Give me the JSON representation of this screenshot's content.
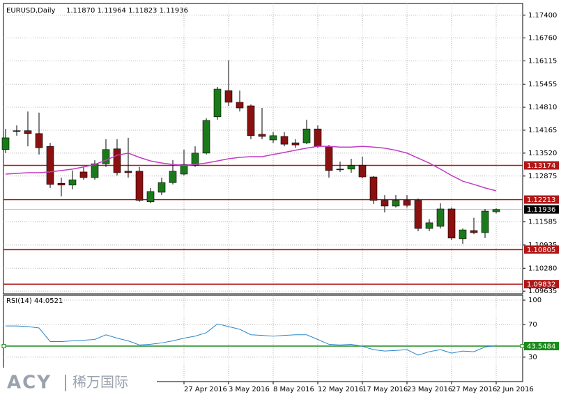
{
  "chart_data": [
    {
      "type": "candlestick",
      "title": "EURUSD,Daily",
      "header_prices": "1.11870 1.11964 1.11823 1.11936",
      "categories": [
        null,
        null,
        null,
        null,
        null,
        null,
        null,
        null,
        null,
        null,
        null,
        null,
        null,
        null,
        null,
        null,
        "27 Apr 2016",
        null,
        null,
        null,
        "3 May 2016",
        null,
        null,
        null,
        "8 May 2016",
        null,
        null,
        null,
        "12 May 2016",
        null,
        null,
        null,
        "17 May 2016",
        null,
        null,
        null,
        "23 May 2016",
        null,
        null,
        null,
        "27 May 2016",
        null,
        null,
        null,
        "2 Jun 2016"
      ],
      "open": [
        1.1362,
        1.1415,
        1.1415,
        1.1407,
        1.1371,
        1.1267,
        1.1262,
        1.1299,
        1.1283,
        1.1322,
        1.1364,
        1.1301,
        1.1301,
        1.1215,
        1.1242,
        1.1269,
        1.1293,
        1.1318,
        1.1352,
        1.1454,
        1.1528,
        1.1495,
        1.1485,
        1.1405,
        1.1389,
        1.1399,
        1.1381,
        1.1381,
        1.142,
        1.1371,
        1.1307,
        1.1307,
        1.1318,
        1.1285,
        1.1219,
        1.1203,
        1.1219,
        1.1219,
        1.114,
        1.1146,
        1.1195,
        1.1111,
        1.1134,
        1.1128,
        1.1187
      ],
      "high": [
        1.142,
        1.143,
        1.1469,
        1.1466,
        1.1381,
        1.1283,
        1.1303,
        1.1313,
        1.1332,
        1.1391,
        1.1391,
        1.1395,
        1.1313,
        1.1254,
        1.1283,
        1.1332,
        1.1362,
        1.1371,
        1.145,
        1.1538,
        1.1613,
        1.1528,
        1.1489,
        1.1479,
        1.1411,
        1.1411,
        1.1391,
        1.1446,
        1.143,
        1.1375,
        1.1328,
        1.1336,
        1.1342,
        1.1287,
        1.1234,
        1.1234,
        1.1234,
        1.1224,
        1.1166,
        1.1211,
        1.1199,
        1.114,
        1.117,
        1.1195,
        1.11964
      ],
      "low": [
        1.1352,
        1.1401,
        1.1371,
        1.1348,
        1.1254,
        1.123,
        1.125,
        1.1277,
        1.1277,
        1.1313,
        1.1289,
        1.1283,
        1.1215,
        1.1211,
        1.1234,
        1.1264,
        1.1289,
        1.1313,
        1.1348,
        1.1446,
        1.1485,
        1.1469,
        1.1391,
        1.1391,
        1.1381,
        1.1371,
        1.1367,
        1.1377,
        1.1367,
        1.1283,
        1.1299,
        1.1297,
        1.1281,
        1.1209,
        1.1185,
        1.1199,
        1.1199,
        1.1132,
        1.1132,
        1.114,
        1.1107,
        1.1097,
        1.1124,
        1.1113,
        1.11823
      ],
      "close": [
        1.1395,
        1.1413,
        1.1407,
        1.1367,
        1.1264,
        1.1262,
        1.1277,
        1.1283,
        1.1322,
        1.1362,
        1.1297,
        1.1297,
        1.1219,
        1.1244,
        1.1269,
        1.1301,
        1.132,
        1.1352,
        1.1444,
        1.1532,
        1.1495,
        1.1479,
        1.1401,
        1.1399,
        1.1401,
        1.1377,
        1.1375,
        1.142,
        1.1371,
        1.1303,
        1.1305,
        1.1317,
        1.1285,
        1.1219,
        1.1203,
        1.1219,
        1.1205,
        1.114,
        1.1156,
        1.1195,
        1.1113,
        1.1136,
        1.1128,
        1.1189,
        1.11936
      ],
      "up_color": "#1a7a1a",
      "down_color": "#8b1010",
      "ylim": [
        1.0956,
        1.1773
      ],
      "yticks": [
        {
          "value": 1.174,
          "label": "1.17400"
        },
        {
          "value": 1.1676,
          "label": "1.16760"
        },
        {
          "value": 1.16115,
          "label": "1.16115"
        },
        {
          "value": 1.15455,
          "label": "1.15455"
        },
        {
          "value": 1.1481,
          "label": "1.14810"
        },
        {
          "value": 1.14165,
          "label": "1.14165"
        },
        {
          "value": 1.1352,
          "label": "1.13520"
        },
        {
          "value": 1.12875,
          "label": "1.12875"
        },
        {
          "value": 1.11585,
          "label": "1.11585"
        },
        {
          "value": 1.10935,
          "label": "1.10935"
        },
        {
          "value": 1.1028,
          "label": "1.10280"
        },
        {
          "value": 1.09635,
          "label": "1.09635"
        }
      ],
      "grid": true,
      "moving_average": {
        "color": "#c23cc2",
        "values": [
          1.1293,
          1.1295,
          1.1297,
          1.1297,
          1.1299,
          1.1303,
          1.1307,
          1.1313,
          1.132,
          1.1332,
          1.1346,
          1.1352,
          1.134,
          1.133,
          1.1324,
          1.132,
          1.1318,
          1.132,
          1.1324,
          1.133,
          1.1336,
          1.134,
          1.1342,
          1.1342,
          1.1348,
          1.1354,
          1.136,
          1.1366,
          1.1371,
          1.1371,
          1.1369,
          1.1369,
          1.1371,
          1.1369,
          1.1366,
          1.136,
          1.1352,
          1.1338,
          1.1324,
          1.1307,
          1.1289,
          1.1273,
          1.1264,
          1.1254,
          1.1246
        ]
      },
      "levels_color": "#b01818",
      "levels": [
        {
          "value": 1.13174,
          "label": "1.13174"
        },
        {
          "value": 1.12213,
          "label": "1.12213"
        },
        {
          "value": 1.10805,
          "label": "1.10805"
        },
        {
          "value": 1.09832,
          "label": "1.09832"
        }
      ],
      "current_price": {
        "value": 1.11936,
        "label": "1.11936"
      }
    },
    {
      "type": "line",
      "title": "RSI(14) 44.0521",
      "color": "#2a86c8",
      "values": [
        68.3,
        68.3,
        67.5,
        65.8,
        49.2,
        49.2,
        50,
        50.8,
        51.7,
        57.5,
        53.3,
        50,
        45,
        45.8,
        47.5,
        50,
        53.3,
        55.8,
        60,
        70.8,
        67.5,
        64.2,
        57.5,
        56.7,
        55.8,
        56.7,
        57.5,
        57.5,
        51.7,
        45.8,
        45,
        45.8,
        43.3,
        39.2,
        37.5,
        38.3,
        39.2,
        32.5,
        36.7,
        39.2,
        35,
        37.5,
        36.7,
        42.5,
        44.0521
      ],
      "ylim": [
        0,
        106
      ],
      "yticks": [
        100,
        70,
        30
      ],
      "level": {
        "value": 43.5484,
        "label": "43.5484",
        "color": "#1a8a1a"
      }
    }
  ],
  "watermark": {
    "brand": "ACY",
    "chinese": "稀万国际"
  }
}
